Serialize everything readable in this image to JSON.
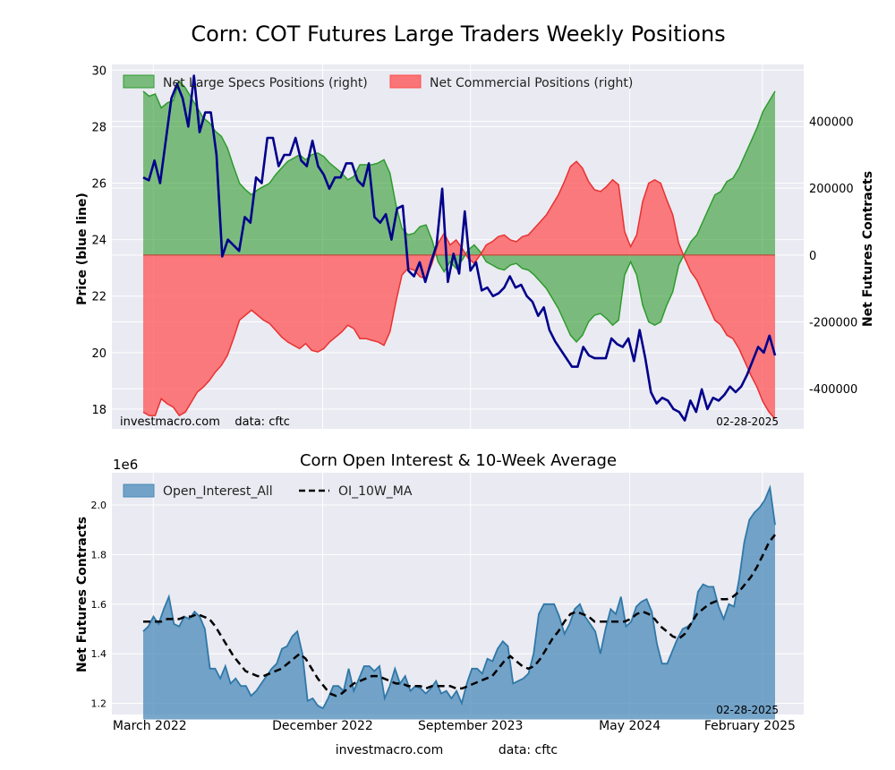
{
  "figure": {
    "title": "Corn: COT Futures Large Traders Weekly Positions",
    "footer_site": "investmacro.com",
    "footer_data": "data: cftc"
  },
  "chart_data": [
    {
      "type": "area",
      "title": "Corn: COT Futures Large Traders Weekly Positions",
      "ylabel_left": "Price (blue line)",
      "ylabel_right": "Net Futures Contracts",
      "ylim_left": [
        17.3,
        30.2
      ],
      "ylim_right": [
        -520000,
        570000
      ],
      "yticks_left": [
        "18",
        "20",
        "22",
        "24",
        "26",
        "28",
        "30"
      ],
      "yticks_right": [
        "-400000",
        "-200000",
        "0",
        "200000",
        "400000"
      ],
      "grid": true,
      "legend_position": "top-left",
      "annotation_left": "investmacro.com    data: cftc",
      "annotation_right": "02-28-2025",
      "series": [
        {
          "name": "Net Large Specs Positions (right)",
          "color": "#2e9b2e",
          "values": [
            490000,
            475000,
            482000,
            440000,
            455000,
            462000,
            520000,
            500000,
            470000,
            440000,
            410000,
            395000,
            370000,
            355000,
            320000,
            265000,
            215000,
            195000,
            180000,
            195000,
            205000,
            215000,
            240000,
            260000,
            280000,
            290000,
            300000,
            285000,
            300000,
            305000,
            295000,
            275000,
            260000,
            245000,
            225000,
            235000,
            270000,
            270000,
            270000,
            275000,
            285000,
            245000,
            150000,
            80000,
            60000,
            65000,
            85000,
            90000,
            45000,
            -20000,
            -50000,
            -20000,
            -40000,
            -15000,
            15000,
            30000,
            10000,
            -20000,
            -30000,
            -40000,
            -45000,
            -30000,
            -25000,
            -40000,
            -45000,
            -60000,
            -80000,
            -100000,
            -130000,
            -160000,
            -200000,
            -240000,
            -260000,
            -240000,
            -200000,
            -180000,
            -175000,
            -190000,
            -210000,
            -195000,
            -60000,
            -20000,
            -60000,
            -150000,
            -200000,
            -210000,
            -200000,
            -150000,
            -110000,
            -30000,
            5000,
            40000,
            60000,
            100000,
            140000,
            180000,
            190000,
            220000,
            230000,
            260000,
            300000,
            340000,
            380000,
            430000,
            460000,
            490000
          ],
          "units": "net futures contracts"
        },
        {
          "name": "Net Commercial Positions (right)",
          "color": "#ff4d4d",
          "values": [
            -470000,
            -480000,
            -480000,
            -430000,
            -445000,
            -455000,
            -480000,
            -470000,
            -440000,
            -410000,
            -395000,
            -375000,
            -350000,
            -330000,
            -300000,
            -250000,
            -195000,
            -180000,
            -165000,
            -180000,
            -195000,
            -205000,
            -225000,
            -245000,
            -260000,
            -270000,
            -280000,
            -265000,
            -285000,
            -290000,
            -280000,
            -260000,
            -245000,
            -230000,
            -210000,
            -220000,
            -250000,
            -250000,
            -255000,
            -260000,
            -270000,
            -230000,
            -140000,
            -60000,
            -40000,
            -45000,
            -65000,
            -70000,
            -25000,
            35000,
            65000,
            30000,
            45000,
            20000,
            -10000,
            -25000,
            0,
            30000,
            40000,
            55000,
            60000,
            45000,
            40000,
            55000,
            60000,
            80000,
            100000,
            120000,
            150000,
            180000,
            220000,
            265000,
            280000,
            260000,
            220000,
            195000,
            190000,
            205000,
            225000,
            210000,
            70000,
            25000,
            60000,
            160000,
            215000,
            225000,
            215000,
            165000,
            120000,
            35000,
            -10000,
            -50000,
            -75000,
            -115000,
            -155000,
            -195000,
            -210000,
            -240000,
            -250000,
            -280000,
            -320000,
            -360000,
            -395000,
            -440000,
            -470000,
            -490000
          ],
          "units": "net futures contracts"
        },
        {
          "name": "Corn price",
          "color": "#00008b",
          "values": [
            26.2,
            26.1,
            26.8,
            26.0,
            27.5,
            29.0,
            29.5,
            29.0,
            28.0,
            29.8,
            27.8,
            28.5,
            28.5,
            27.0,
            23.4,
            24.0,
            23.8,
            23.6,
            24.8,
            24.6,
            26.2,
            26.0,
            27.6,
            27.6,
            26.6,
            27.0,
            27.0,
            27.6,
            26.8,
            26.6,
            27.5,
            26.6,
            26.3,
            25.8,
            26.2,
            26.2,
            26.7,
            26.7,
            26.1,
            25.9,
            26.7,
            24.8,
            24.6,
            24.9,
            24.0,
            25.1,
            25.2,
            22.9,
            22.7,
            23.2,
            22.5,
            23.2,
            23.8,
            25.8,
            22.5,
            23.5,
            22.8,
            25.0,
            22.9,
            23.2,
            22.2,
            22.3,
            22.0,
            22.1,
            22.3,
            22.7,
            22.3,
            22.4,
            22.0,
            21.8,
            21.3,
            21.6,
            20.8,
            20.4,
            20.1,
            19.8,
            19.5,
            19.5,
            20.2,
            19.9,
            19.8,
            19.8,
            19.8,
            20.5,
            20.3,
            20.2,
            20.5,
            19.7,
            20.8,
            19.8,
            18.6,
            18.2,
            18.4,
            18.3,
            18.0,
            17.9,
            17.6,
            18.3,
            17.9,
            18.7,
            18.0,
            18.4,
            18.3,
            18.5,
            18.8,
            18.6,
            18.8,
            19.2,
            19.7,
            20.2,
            20.0,
            20.6,
            19.9
          ]
        }
      ]
    },
    {
      "type": "area",
      "title": "Corn Open Interest & 10-Week Average",
      "ylabel": "Net Futures Contracts",
      "scale_label": "1e6",
      "ylim": [
        1.155,
        2.13
      ],
      "yticks": [
        "1.2",
        "1.4",
        "1.6",
        "1.8",
        "2.0"
      ],
      "xtick_labels": [
        "March 2022",
        "December 2022",
        "September 2023",
        "May 2024",
        "February 2025"
      ],
      "grid": true,
      "legend_position": "top-left",
      "annotation_right": "02-28-2025",
      "series": [
        {
          "name": "Open_Interest_All",
          "color": "#4a8ab8",
          "values": [
            1.49,
            1.51,
            1.55,
            1.52,
            1.58,
            1.63,
            1.52,
            1.51,
            1.55,
            1.54,
            1.57,
            1.55,
            1.5,
            1.34,
            1.34,
            1.3,
            1.35,
            1.28,
            1.3,
            1.27,
            1.27,
            1.23,
            1.25,
            1.28,
            1.31,
            1.34,
            1.36,
            1.42,
            1.43,
            1.47,
            1.49,
            1.4,
            1.21,
            1.22,
            1.19,
            1.18,
            1.22,
            1.27,
            1.27,
            1.25,
            1.34,
            1.25,
            1.3,
            1.35,
            1.35,
            1.33,
            1.35,
            1.22,
            1.27,
            1.34,
            1.28,
            1.31,
            1.25,
            1.27,
            1.26,
            1.24,
            1.26,
            1.29,
            1.24,
            1.25,
            1.22,
            1.25,
            1.2,
            1.28,
            1.34,
            1.34,
            1.32,
            1.38,
            1.37,
            1.42,
            1.45,
            1.43,
            1.28,
            1.29,
            1.3,
            1.32,
            1.4,
            1.56,
            1.6,
            1.6,
            1.6,
            1.55,
            1.48,
            1.52,
            1.58,
            1.6,
            1.55,
            1.52,
            1.49,
            1.4,
            1.5,
            1.58,
            1.56,
            1.63,
            1.51,
            1.53,
            1.59,
            1.61,
            1.62,
            1.57,
            1.44,
            1.36,
            1.36,
            1.41,
            1.46,
            1.5,
            1.51,
            1.53,
            1.65,
            1.68,
            1.67,
            1.67,
            1.59,
            1.54,
            1.6,
            1.59,
            1.7,
            1.85,
            1.94,
            1.97,
            1.99,
            2.02,
            2.07,
            1.92
          ]
        },
        {
          "name": "OI_10W_MA",
          "color": "#000000",
          "style": "dashed",
          "values": [
            1.53,
            1.53,
            1.53,
            1.53,
            1.54,
            1.54,
            1.54,
            1.55,
            1.55,
            1.56,
            1.55,
            1.54,
            1.51,
            1.47,
            1.43,
            1.39,
            1.36,
            1.33,
            1.32,
            1.31,
            1.31,
            1.32,
            1.33,
            1.34,
            1.36,
            1.38,
            1.4,
            1.38,
            1.34,
            1.3,
            1.27,
            1.24,
            1.23,
            1.24,
            1.26,
            1.28,
            1.29,
            1.3,
            1.31,
            1.31,
            1.3,
            1.29,
            1.28,
            1.28,
            1.27,
            1.27,
            1.27,
            1.26,
            1.27,
            1.27,
            1.27,
            1.27,
            1.26,
            1.26,
            1.27,
            1.28,
            1.29,
            1.3,
            1.31,
            1.34,
            1.37,
            1.39,
            1.37,
            1.35,
            1.34,
            1.35,
            1.38,
            1.42,
            1.46,
            1.49,
            1.53,
            1.56,
            1.57,
            1.56,
            1.55,
            1.53,
            1.53,
            1.53,
            1.53,
            1.53,
            1.53,
            1.54,
            1.56,
            1.57,
            1.56,
            1.54,
            1.51,
            1.49,
            1.47,
            1.46,
            1.48,
            1.52,
            1.56,
            1.58,
            1.6,
            1.61,
            1.62,
            1.62,
            1.63,
            1.65,
            1.68,
            1.71,
            1.75,
            1.8,
            1.85,
            1.88
          ]
        }
      ]
    }
  ]
}
